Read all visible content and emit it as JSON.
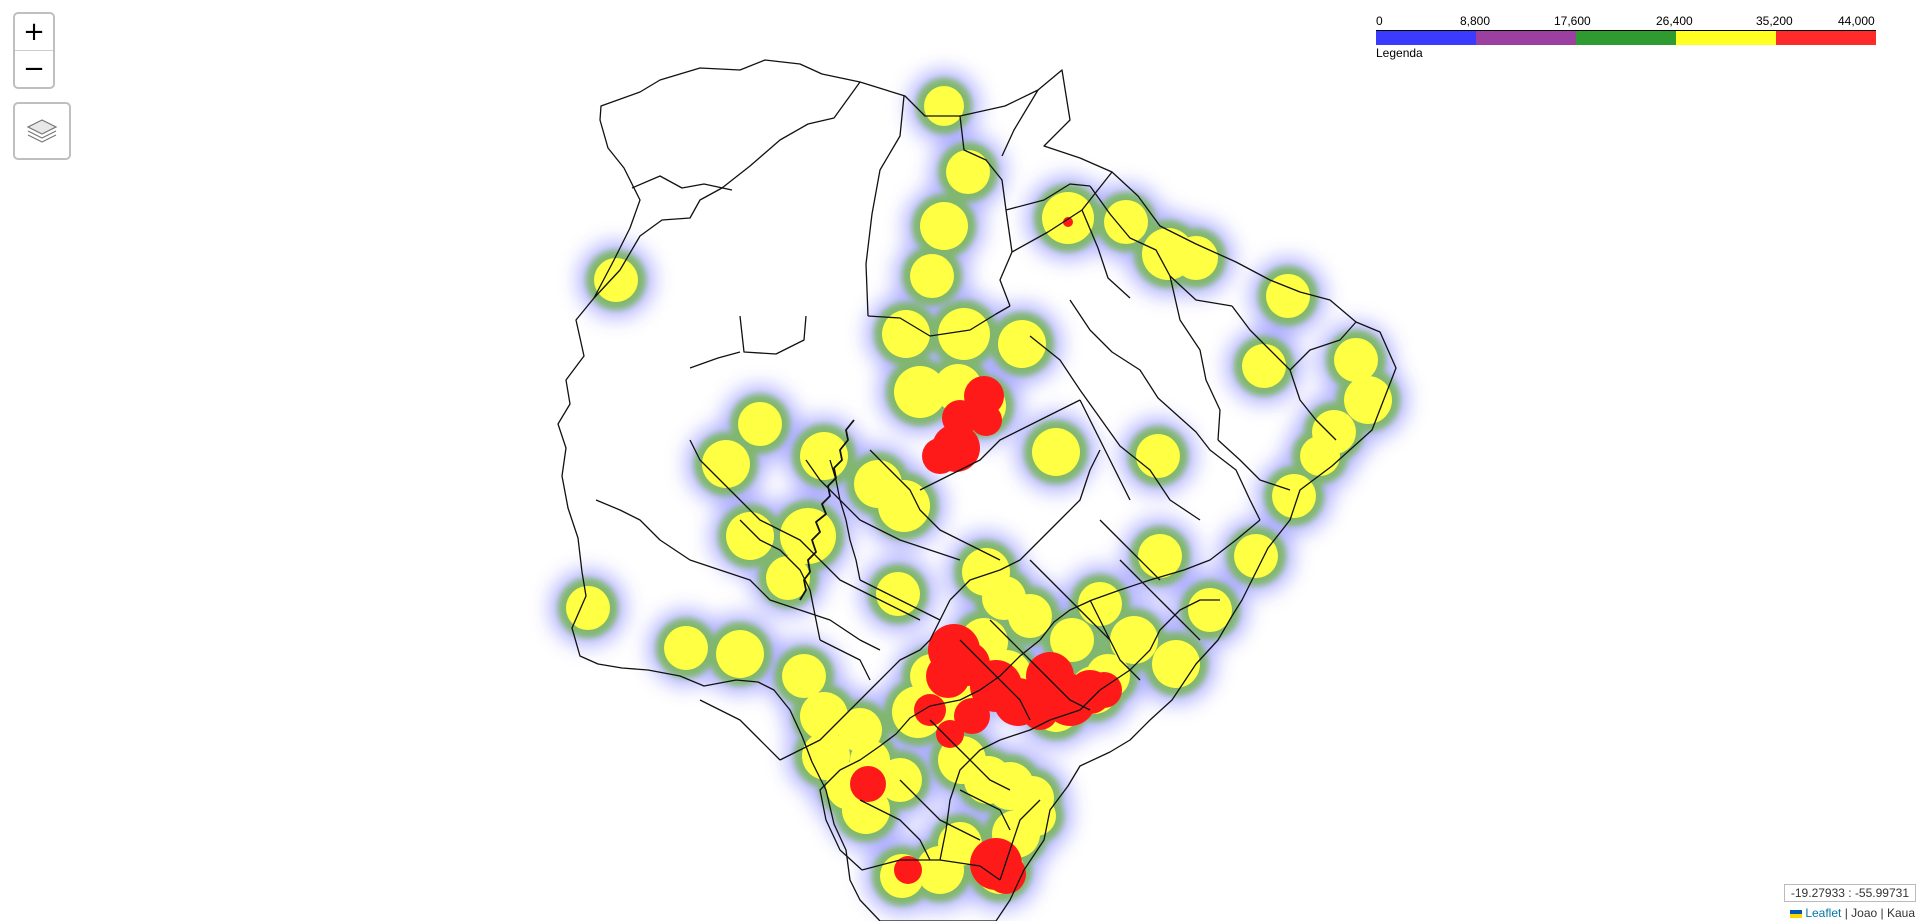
{
  "map": {
    "region_name": "",
    "boundary_color": "#111111",
    "background_color": "#ffffff"
  },
  "zoom_control": {
    "zoom_in_label": "+",
    "zoom_out_label": "−"
  },
  "layers_control": {
    "icon": "layers-icon"
  },
  "legend": {
    "title": "Legenda",
    "ticks": [
      "0",
      "8,800",
      "17,600",
      "26,400",
      "35,200",
      "44,000"
    ],
    "colors": [
      "#3b3bff",
      "#9b40a0",
      "#2f9a2f",
      "#ffff22",
      "#ff2a2a"
    ]
  },
  "coordinates": {
    "text": "-19.27933 : -55.99731"
  },
  "attribution": {
    "flag_colors": [
      "#0057b7",
      "#ffd700"
    ],
    "leaflet_label": "Leaflet",
    "separator": " | ",
    "authors": "Joao | Kaua"
  },
  "heatmap": {
    "scale_max": 44000,
    "hotspots_note": "",
    "gradient": {
      "blue": "#6f6fff",
      "green": "#78b858",
      "yellow": "#ffff44",
      "red": "#ff1a1a"
    }
  }
}
